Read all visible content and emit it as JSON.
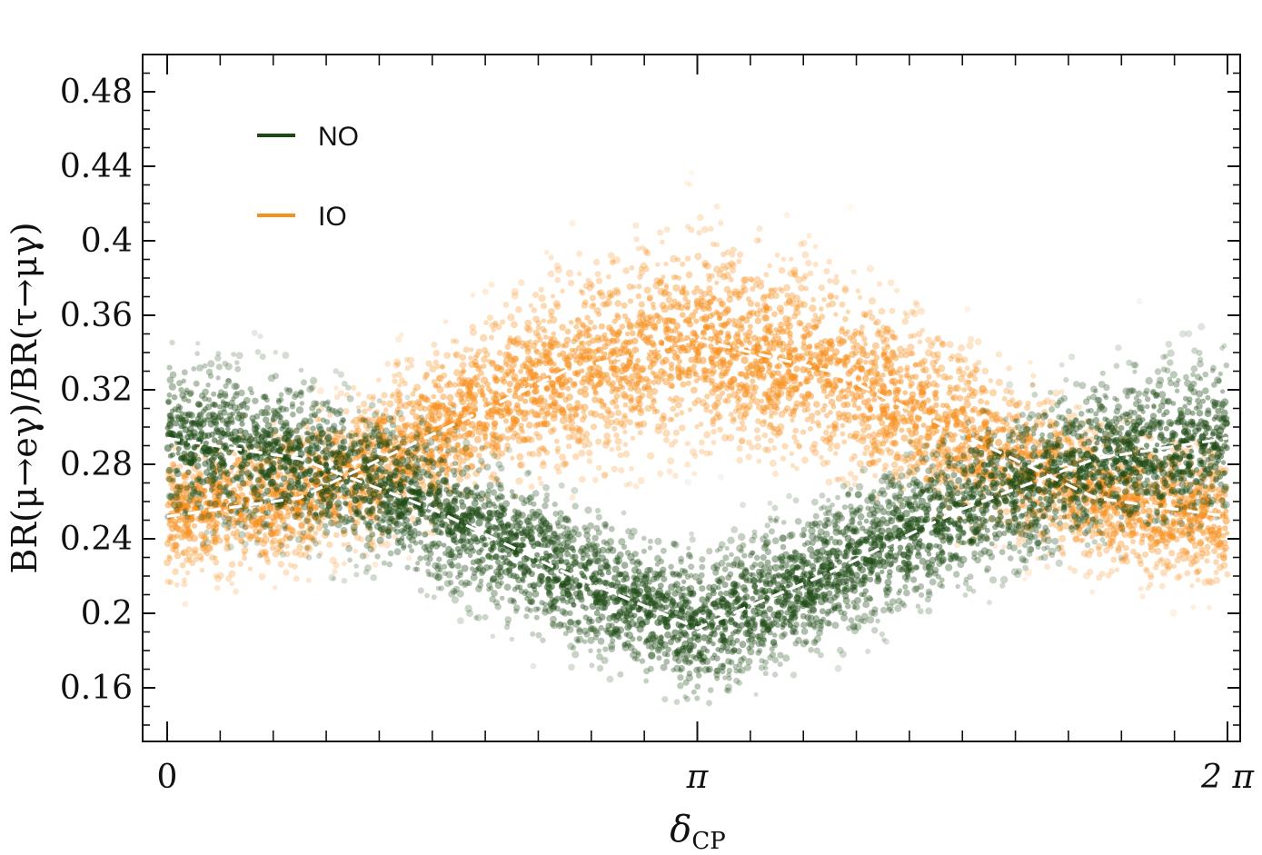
{
  "chart_data": {
    "type": "scatter",
    "ylabel": "BR(μ→eγ)/BR(τ→μγ)",
    "xlabel": "δ",
    "xlabel_sub": "CP",
    "xlim": [
      0,
      6.2832
    ],
    "ylim": [
      0.13,
      0.5
    ],
    "x_ticks": [
      {
        "value": 0,
        "label": "0"
      },
      {
        "value": 3.14159,
        "label": "π"
      },
      {
        "value": 6.28318,
        "label": "2 π"
      }
    ],
    "y_ticks": [
      {
        "value": 0.16,
        "label": "0.16"
      },
      {
        "value": 0.2,
        "label": "0.2"
      },
      {
        "value": 0.24,
        "label": "0.24"
      },
      {
        "value": 0.28,
        "label": "0.28"
      },
      {
        "value": 0.32,
        "label": "0.32"
      },
      {
        "value": 0.36,
        "label": "0.36"
      },
      {
        "value": 0.4,
        "label": "0.4"
      },
      {
        "value": 0.44,
        "label": "0.44"
      },
      {
        "value": 0.48,
        "label": "0.48"
      }
    ],
    "legend_position": "top-left",
    "series": [
      {
        "name": "NO",
        "color": "#1d4a14",
        "kind": "scatter-band",
        "x": [
          0,
          0.785,
          1.571,
          2.356,
          3.142,
          3.927,
          4.712,
          5.498,
          6.283
        ],
        "y_lower": [
          0.245,
          0.228,
          0.198,
          0.168,
          0.152,
          0.168,
          0.198,
          0.228,
          0.245
        ],
        "y_upper": [
          0.38,
          0.362,
          0.326,
          0.288,
          0.274,
          0.288,
          0.326,
          0.362,
          0.38
        ],
        "center": [
          0.294,
          0.283,
          0.256,
          0.222,
          0.192,
          0.222,
          0.256,
          0.283,
          0.294
        ]
      },
      {
        "name": "IO",
        "color": "#f7901e",
        "kind": "scatter-band",
        "x": [
          0,
          0.785,
          1.571,
          2.356,
          3.142,
          3.927,
          4.712,
          5.498,
          6.283
        ],
        "y_lower": [
          0.186,
          0.205,
          0.235,
          0.264,
          0.276,
          0.264,
          0.235,
          0.205,
          0.186
        ],
        "y_upper": [
          0.3,
          0.325,
          0.38,
          0.43,
          0.452,
          0.43,
          0.38,
          0.325,
          0.3
        ],
        "center": [
          0.252,
          0.262,
          0.296,
          0.33,
          0.347,
          0.33,
          0.296,
          0.262,
          0.252
        ]
      }
    ],
    "curves": [
      {
        "name": "",
        "color": "#ffffff",
        "dash": true,
        "follows": "NO"
      },
      {
        "name": "",
        "color": "#ffffff",
        "dash": true,
        "follows": "IO"
      }
    ],
    "grid": false
  }
}
